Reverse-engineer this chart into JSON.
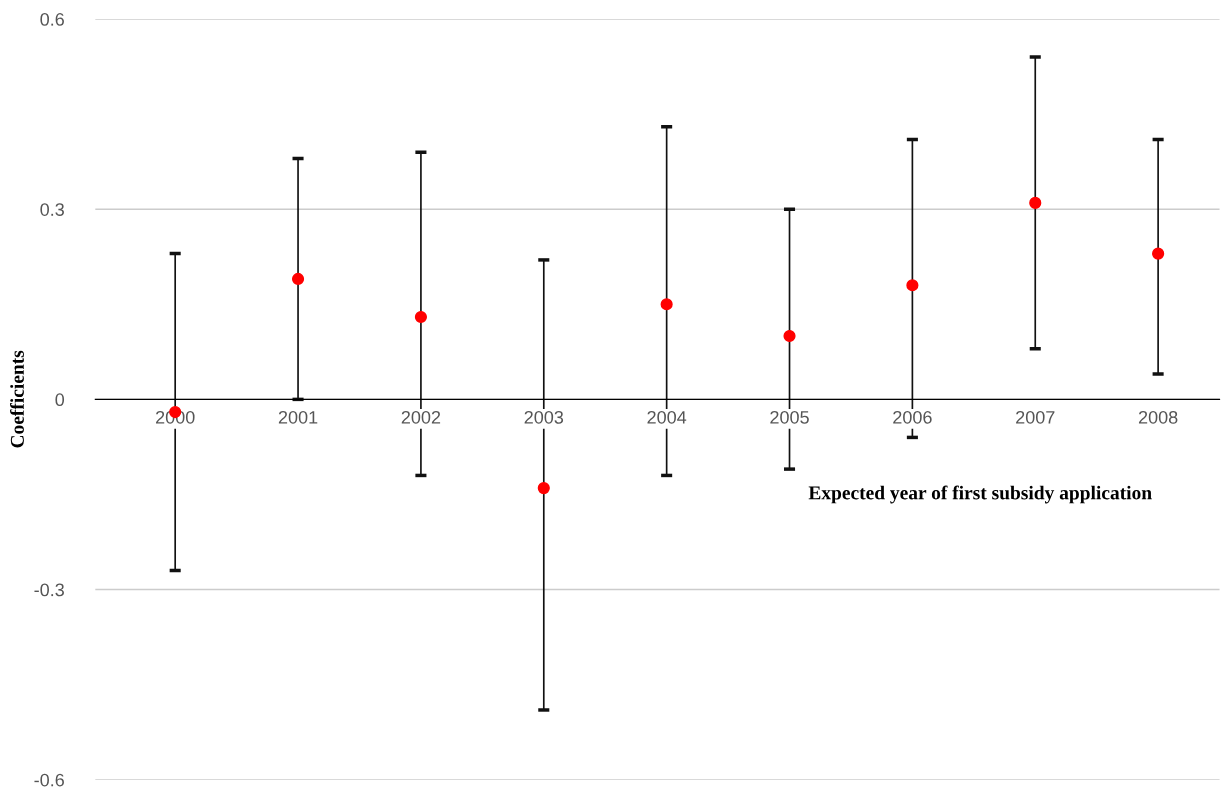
{
  "chart_data": {
    "type": "scatter",
    "xlabel": "Expected year of first subsidy application",
    "ylabel": "Coefficients",
    "categories": [
      "2000",
      "2001",
      "2002",
      "2003",
      "2004",
      "2005",
      "2006",
      "2007",
      "2008"
    ],
    "series": [
      {
        "color": "#ff0000",
        "values": [
          -0.02,
          0.19,
          0.13,
          -0.14,
          0.15,
          0.1,
          0.18,
          0.31,
          0.23
        ],
        "errors": [
          [
            -0.27,
            0.23
          ],
          [
            0.0,
            0.38
          ],
          [
            -0.12,
            0.39
          ],
          [
            -0.49,
            0.22
          ],
          [
            -0.12,
            0.43
          ],
          [
            -0.11,
            0.3
          ],
          [
            -0.06,
            0.41
          ],
          [
            0.08,
            0.54
          ],
          [
            0.04,
            0.41
          ]
        ]
      }
    ],
    "ylim": [
      -0.6,
      0.6
    ],
    "yticks": [
      -0.6,
      -0.3,
      0,
      0.3,
      0.6
    ],
    "grid": "y",
    "marker": "circle",
    "legend": false
  }
}
